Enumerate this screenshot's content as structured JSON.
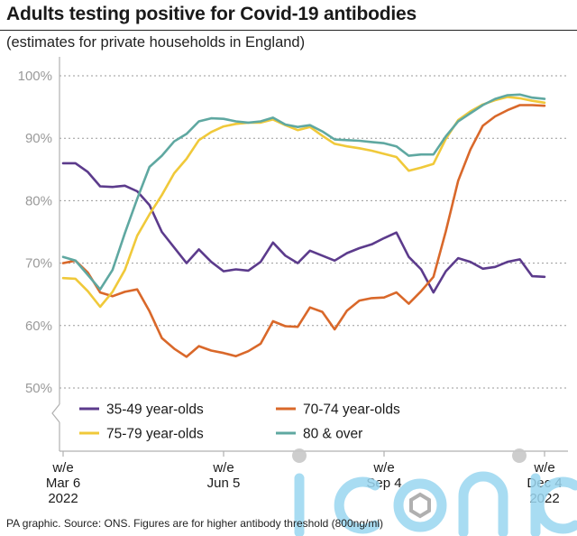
{
  "header": {
    "title": "Adults testing positive for Covid-19 antibodies",
    "subtitle": "(estimates for private households in England)"
  },
  "footer": {
    "source": "PA graphic. Source: ONS. Figures are for higher antibody threshold (800ng/ml)"
  },
  "watermark": {
    "text": "iconic",
    "color": "#9ad6f0"
  },
  "chart_data": {
    "type": "line",
    "title": "Adults testing positive for Covid-19 antibodies",
    "subtitle": "(estimates for private households in England)",
    "ylim": [
      45,
      100
    ],
    "yticks": [
      50,
      60,
      70,
      80,
      90,
      100
    ],
    "ytick_labels": [
      "50%",
      "60%",
      "70%",
      "80%",
      "90%",
      "100%"
    ],
    "grid": true,
    "legend_position": "bottom-left",
    "x_count": 40,
    "xticks": [
      {
        "index": 0,
        "lines": [
          "w/e",
          "Mar 6",
          "2022"
        ]
      },
      {
        "index": 13,
        "lines": [
          "w/e",
          "Jun 5"
        ]
      },
      {
        "index": 26,
        "lines": [
          "w/e",
          "Sep 4"
        ]
      },
      {
        "index": 39,
        "lines": [
          "w/e",
          "Dec 4",
          "2022"
        ]
      }
    ],
    "series": [
      {
        "name": "35-49 year-olds",
        "color": "#5c3b8c",
        "values": [
          86,
          86,
          84.6,
          82.3,
          82.2,
          82.4,
          81.5,
          79.3,
          75,
          72.5,
          70,
          72.2,
          70.2,
          68.7,
          69,
          68.8,
          70.2,
          73.3,
          71.2,
          70,
          72,
          71.2,
          70.4,
          71.6,
          72.4,
          73,
          74,
          74.9,
          71,
          69,
          65.3,
          68.7,
          70.8,
          70.2,
          69.1,
          69.4,
          70.2,
          70.6,
          67.9,
          67.8
        ]
      },
      {
        "name": "70-74 year-olds",
        "color": "#d9682a",
        "values": [
          70,
          70.4,
          68.5,
          65.3,
          64.7,
          65.4,
          65.8,
          62.3,
          58,
          56.3,
          55,
          56.7,
          56,
          55.6,
          55.1,
          55.9,
          57.1,
          60.7,
          59.9,
          59.8,
          62.9,
          62.2,
          59.4,
          62.4,
          64,
          64.4,
          64.5,
          65.3,
          63.5,
          65.5,
          67.8,
          75.1,
          83.2,
          88.2,
          92,
          93.5,
          94.5,
          95.3,
          95.3,
          95.2
        ]
      },
      {
        "name": "75-79 year-olds",
        "color": "#f0c93a",
        "values": [
          67.6,
          67.5,
          65.5,
          63,
          65.4,
          68.9,
          74.4,
          77.8,
          80.9,
          84.4,
          86.7,
          89.7,
          91,
          91.9,
          92.3,
          92.5,
          92.5,
          93,
          92.1,
          91.3,
          91.8,
          90.4,
          89.1,
          88.7,
          88.4,
          88,
          87.5,
          87,
          84.8,
          85.3,
          85.9,
          89.9,
          92.9,
          94.3,
          95.4,
          96.1,
          96.6,
          96.4,
          96,
          95.7
        ]
      },
      {
        "name": "80 & over",
        "color": "#5fa8a1",
        "values": [
          71,
          70.4,
          68.1,
          65.8,
          68.9,
          74.8,
          80.3,
          85.4,
          87.2,
          89.5,
          90.7,
          92.7,
          93.2,
          93.1,
          92.7,
          92.5,
          92.7,
          93.3,
          92.2,
          91.8,
          92.1,
          91.1,
          89.8,
          89.7,
          89.6,
          89.4,
          89.2,
          88.7,
          87.2,
          87.4,
          87.4,
          90.3,
          92.7,
          94,
          95.3,
          96.3,
          96.9,
          97,
          96.5,
          96.3
        ]
      }
    ]
  }
}
